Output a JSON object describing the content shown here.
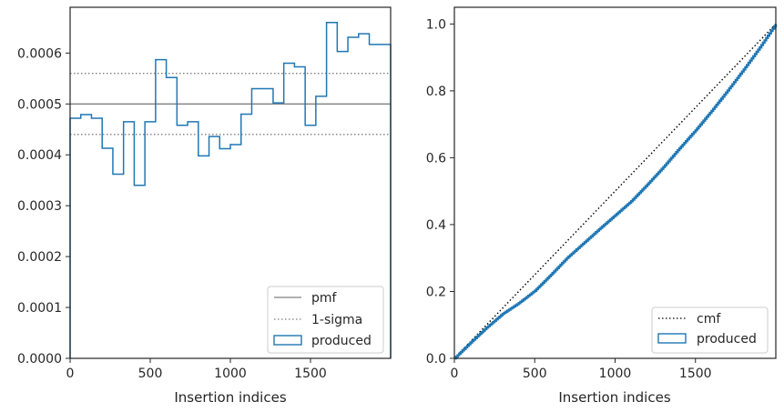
{
  "chart_data": [
    {
      "type": "line",
      "title": "",
      "xlabel": "Insertion indices",
      "ylabel": "",
      "xlim": [
        0,
        2000
      ],
      "ylim": [
        0,
        0.00069
      ],
      "xticks": [
        0,
        500,
        1000,
        1500
      ],
      "xtick_labels": [
        "0",
        "500",
        "1000",
        "1500"
      ],
      "yticks": [
        0,
        0.0001,
        0.0002,
        0.0003,
        0.0004,
        0.0005,
        0.0006
      ],
      "ytick_labels": [
        "0.0000",
        "0.0001",
        "0.0002",
        "0.0003",
        "0.0004",
        "0.0005",
        "0.0006"
      ],
      "grid": false,
      "legend_position": "lower-right",
      "series": [
        {
          "name": "pmf",
          "kind": "hline",
          "value": 0.0005,
          "color": "#808080",
          "style": "solid"
        },
        {
          "name": "1-sigma",
          "kind": "hlines",
          "values": [
            0.00044,
            0.00056
          ],
          "color": "#808080",
          "style": "dotted"
        },
        {
          "name": "produced",
          "kind": "step-histogram",
          "color": "#1f77b4",
          "bin_edges": [
            0,
            66.7,
            133.3,
            200,
            266.7,
            333.3,
            400,
            466.7,
            533.3,
            600,
            666.7,
            733.3,
            800,
            866.7,
            933.3,
            1000,
            1066.7,
            1133.3,
            1200,
            1266.7,
            1333.3,
            1400,
            1466.7,
            1533.3,
            1600,
            1666.7,
            1733.3,
            1800,
            1866.7,
            1933.3,
            2000
          ],
          "values": [
            0.000472,
            0.000479,
            0.000472,
            0.000413,
            0.000362,
            0.000465,
            0.00034,
            0.000465,
            0.000587,
            0.000552,
            0.000458,
            0.000465,
            0.000398,
            0.000436,
            0.000412,
            0.00042,
            0.00048,
            0.00053,
            0.00053,
            0.000502,
            0.00058,
            0.000573,
            0.000458,
            0.000515,
            0.00066,
            0.000603,
            0.000631,
            0.000638,
            0.000617,
            0.000617
          ]
        }
      ]
    },
    {
      "type": "line",
      "title": "",
      "xlabel": "Insertion indices",
      "ylabel": "",
      "xlim": [
        0,
        2000
      ],
      "ylim": [
        0,
        1.05
      ],
      "xticks": [
        0,
        500,
        1000,
        1500
      ],
      "xtick_labels": [
        "0",
        "500",
        "1000",
        "1500"
      ],
      "yticks": [
        0,
        0.2,
        0.4,
        0.6,
        0.8,
        1.0
      ],
      "ytick_labels": [
        "0.0",
        "0.2",
        "0.4",
        "0.6",
        "0.8",
        "1.0"
      ],
      "grid": false,
      "legend_position": "lower-right",
      "series": [
        {
          "name": "cmf",
          "kind": "line",
          "color": "#000000",
          "style": "dotted",
          "x": [
            0,
            2000
          ],
          "y": [
            0,
            1.0
          ]
        },
        {
          "name": "produced",
          "kind": "step-cdf",
          "color": "#1f77b4",
          "x": [
            0,
            100,
            200,
            300,
            400,
            500,
            600,
            700,
            800,
            900,
            1000,
            1100,
            1200,
            1300,
            1400,
            1500,
            1600,
            1700,
            1800,
            1900,
            2000
          ],
          "y": [
            0,
            0.047,
            0.092,
            0.133,
            0.165,
            0.202,
            0.25,
            0.3,
            0.343,
            0.386,
            0.428,
            0.47,
            0.52,
            0.572,
            0.628,
            0.682,
            0.74,
            0.801,
            0.864,
            0.93,
            1.0
          ]
        }
      ]
    }
  ]
}
